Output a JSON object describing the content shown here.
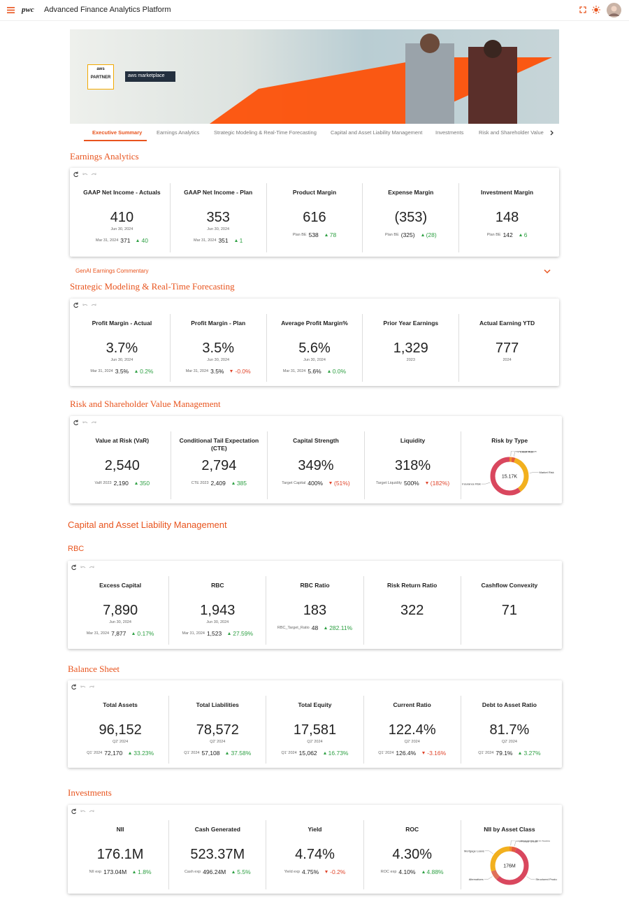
{
  "header": {
    "logo": "pwc",
    "title": "Advanced Finance Analytics Platform"
  },
  "banner": {
    "badge_brand": "aws",
    "badge_label": "PARTNER",
    "marketplace": "aws marketplace"
  },
  "tabs": [
    "Executive Summary",
    "Earnings Analytics",
    "Strategic Modeling & Real-Time Forecasting",
    "Capital and Asset Liability Management",
    "Investments",
    "Risk and Shareholder Value"
  ],
  "sections": [
    {
      "title": "Earnings Analytics",
      "commentary": "GenAI Earnings Commentary",
      "cards": [
        {
          "title": "GAAP Net Income - Actuals",
          "value": "410",
          "date": "Jun 30, 2024",
          "compare_label": "Mar 31, 2024",
          "compare_value": "371",
          "delta": "40",
          "trend": "up"
        },
        {
          "title": "GAAP Net Income - Plan",
          "value": "353",
          "date": "Jun 30, 2024",
          "compare_label": "Mar 31, 2024",
          "compare_value": "351",
          "delta": "1",
          "trend": "up"
        },
        {
          "title": "Product Margin",
          "value": "616",
          "compare_label": "Plan BE",
          "compare_value": "538",
          "delta": "78",
          "trend": "up"
        },
        {
          "title": "Expense Margin",
          "value": "(353)",
          "compare_label": "Plan BE",
          "compare_value": "(325)",
          "delta": "(28)",
          "trend": "up"
        },
        {
          "title": "Investment Margin",
          "value": "148",
          "compare_label": "Plan BE",
          "compare_value": "142",
          "delta": "6",
          "trend": "up"
        }
      ]
    },
    {
      "title": "Strategic Modeling & Real-Time Forecasting",
      "cards": [
        {
          "title": "Profit Margin - Actual",
          "value": "3.7%",
          "date": "Jun 30, 2024",
          "compare_label": "Mar 31, 2024",
          "compare_value": "3.5%",
          "delta": "0.2%",
          "trend": "up"
        },
        {
          "title": "Profit Margin - Plan",
          "value": "3.5%",
          "date": "Jun 30, 2024",
          "compare_label": "Mar 31, 2024",
          "compare_value": "3.5%",
          "delta": "-0.0%",
          "trend": "down"
        },
        {
          "title": "Average Profit Margin%",
          "value": "5.6%",
          "date": "Jun 30, 2024",
          "compare_label": "Mar 31, 2024",
          "compare_value": "5.6%",
          "delta": "0.0%",
          "trend": "up"
        },
        {
          "title": "Prior Year Earnings",
          "value": "1,329",
          "date": "2023"
        },
        {
          "title": "Actual Earning YTD",
          "value": "777",
          "date": "2024"
        }
      ]
    },
    {
      "title": "Risk and Shareholder Value Management",
      "cards": [
        {
          "title": "Value at Risk (VaR)",
          "value": "2,540",
          "compare_label": "VaR 2023",
          "compare_value": "2,190",
          "delta": "350",
          "trend": "up"
        },
        {
          "title": "Conditional Tail Expectation (CTE)",
          "value": "2,794",
          "compare_label": "CTE 2023",
          "compare_value": "2,409",
          "delta": "385",
          "trend": "up"
        },
        {
          "title": "Capital Strength",
          "value": "349%",
          "compare_label": "Target Capital",
          "compare_value": "400%",
          "delta": "(51%)",
          "trend": "down"
        },
        {
          "title": "Liquidity",
          "value": "318%",
          "compare_label": "Target Liquidity",
          "compare_value": "500%",
          "delta": "(182%)",
          "trend": "down"
        },
        {
          "type": "donut",
          "title": "Risk by Type",
          "center": "15.17K",
          "segments": [
            {
              "name": "Operational Risk",
              "value": 2,
              "color": "#f28c28"
            },
            {
              "name": "Credit Risk",
              "value": 3,
              "color": "#e45c3a"
            },
            {
              "name": "Market Risk",
              "value": 35,
              "color": "#f2b01e"
            },
            {
              "name": "Insurance Risk",
              "value": 60,
              "color": "#d9475e"
            }
          ]
        }
      ]
    },
    {
      "group_title": "Capital and Asset Liability Management",
      "title": "RBC",
      "cards": [
        {
          "title": "Excess Capital",
          "value": "7,890",
          "date": "Jun 30, 2024",
          "compare_label": "Mar 31, 2024",
          "compare_value": "7,877",
          "delta": "0.17%",
          "trend": "up"
        },
        {
          "title": "RBC",
          "value": "1,943",
          "date": "Jun 30, 2024",
          "compare_label": "Mar 31, 2024",
          "compare_value": "1,523",
          "delta": "27.59%",
          "trend": "up"
        },
        {
          "title": "RBC Ratio",
          "value": "183",
          "compare_label": "RBC_Target_Ratio",
          "compare_value": "48",
          "delta": "282.11%",
          "trend": "up"
        },
        {
          "title": "Risk Return Ratio",
          "value": "322"
        },
        {
          "title": "Cashflow Convexity",
          "value": "71"
        }
      ]
    },
    {
      "title": "Balance Sheet",
      "cards": [
        {
          "title": "Total Assets",
          "value": "96,152",
          "date": "Q2' 2024",
          "compare_label": "Q1' 2024",
          "compare_value": "72,170",
          "delta": "33.23%",
          "trend": "up"
        },
        {
          "title": "Total Liabilities",
          "value": "78,572",
          "date": "Q2' 2024",
          "compare_label": "Q1' 2024",
          "compare_value": "57,108",
          "delta": "37.58%",
          "trend": "up"
        },
        {
          "title": "Total Equity",
          "value": "17,581",
          "date": "Q2' 2024",
          "compare_label": "Q1' 2024",
          "compare_value": "15,062",
          "delta": "16.73%",
          "trend": "up"
        },
        {
          "title": "Current Ratio",
          "value": "122.4%",
          "date": "Q2' 2024",
          "compare_label": "Q1' 2024",
          "compare_value": "126.4%",
          "delta": "-3.16%",
          "trend": "down"
        },
        {
          "title": "Debt to Asset Ratio",
          "value": "81.7%",
          "date": "Q2' 2024",
          "compare_label": "Q1' 2024",
          "compare_value": "79.1%",
          "delta": "3.27%",
          "trend": "up"
        }
      ]
    },
    {
      "title": "Investments",
      "cards": [
        {
          "title": "NII",
          "value": "176.1M",
          "compare_label": "NII exp",
          "compare_value": "173.04M",
          "delta": "1.8%",
          "trend": "up"
        },
        {
          "title": "Cash Generated",
          "value": "523.37M",
          "compare_label": "Cash exp",
          "compare_value": "496.24M",
          "delta": "5.5%",
          "trend": "up"
        },
        {
          "title": "Yield",
          "value": "4.74%",
          "compare_label": "Yield exp",
          "compare_value": "4.75%",
          "delta": "-0.2%",
          "trend": "down"
        },
        {
          "title": "ROC",
          "value": "4.30%",
          "compare_label": "ROC exp",
          "compare_value": "4.10%",
          "delta": "4.88%",
          "trend": "up"
        },
        {
          "type": "donut",
          "title": "NII by Asset Class",
          "center": "176M",
          "segments": [
            {
              "name": "Liquid or Short Term Assets",
              "value": 2,
              "color": "#f28c28"
            },
            {
              "name": "Private Credit",
              "value": 4,
              "color": "#e45c3a"
            },
            {
              "name": "Structured Products",
              "value": 56,
              "color": "#d9475e"
            },
            {
              "name": "Alternatives",
              "value": 8,
              "color": "#e0705a"
            },
            {
              "name": "Mortgage Loans",
              "value": 30,
              "color": "#f2b01e"
            }
          ]
        }
      ]
    }
  ]
}
